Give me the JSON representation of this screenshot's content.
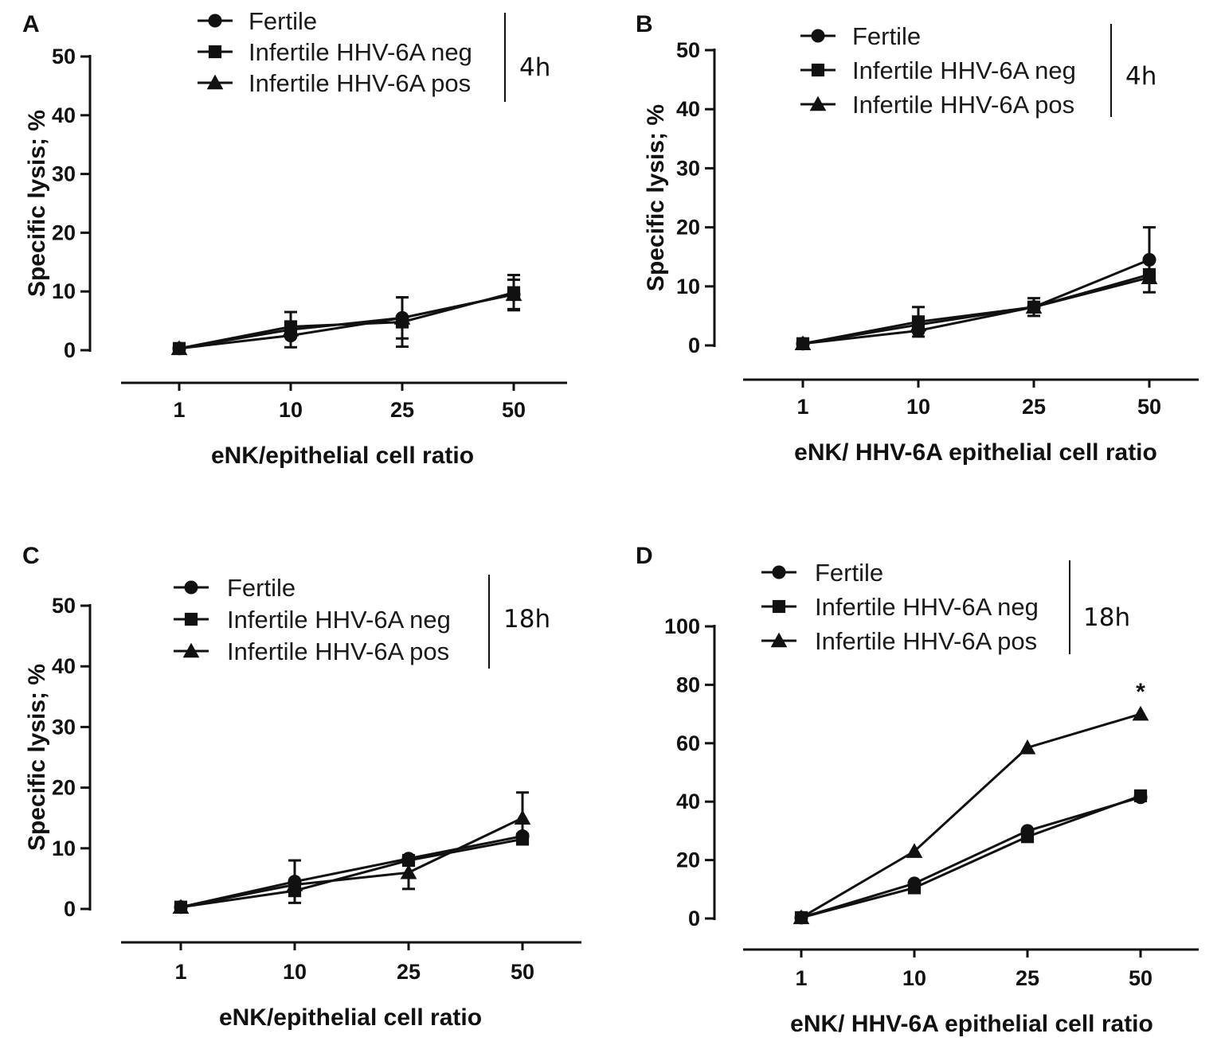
{
  "chart_data": [
    {
      "panel": "A",
      "type": "line",
      "categories": [
        "1",
        "10",
        "25",
        "50"
      ],
      "ylim": [
        0,
        50
      ],
      "yticks": [
        0,
        10,
        20,
        30,
        40,
        50
      ],
      "xlabel": "eNK/epithelial cell ratio",
      "ylabel": "Specific lysis; %",
      "time_label": "4h",
      "series": [
        {
          "name": "Fertile",
          "marker": "circle",
          "values": [
            0.3,
            2.5,
            5.5,
            9.5
          ],
          "err": [
            0,
            0,
            0,
            0
          ]
        },
        {
          "name": "Infertile HHV-6A neg",
          "marker": "square",
          "values": [
            0.3,
            4.0,
            4.8,
            9.8
          ],
          "err": [
            0,
            0,
            4.2,
            3.0
          ]
        },
        {
          "name": "Infertile HHV-6A pos",
          "marker": "triangle",
          "values": [
            0.3,
            3.5,
            5.5,
            9.5
          ],
          "err": [
            0,
            3.0,
            3.5,
            2.5
          ]
        }
      ]
    },
    {
      "panel": "B",
      "type": "line",
      "categories": [
        "1",
        "10",
        "25",
        "50"
      ],
      "ylim": [
        0,
        50
      ],
      "yticks": [
        0,
        10,
        20,
        30,
        40,
        50
      ],
      "xlabel": "eNK/ HHV-6A epithelial cell ratio",
      "ylabel": "Specific lysis; %",
      "time_label": "4h",
      "series": [
        {
          "name": "Fertile",
          "marker": "circle",
          "values": [
            0.3,
            2.5,
            6.5,
            14.5
          ],
          "err": [
            0,
            0,
            0,
            5.5
          ]
        },
        {
          "name": "Infertile HHV-6A neg",
          "marker": "square",
          "values": [
            0.3,
            4.0,
            6.5,
            12.0
          ],
          "err": [
            0,
            2.5,
            1.5,
            0
          ]
        },
        {
          "name": "Infertile HHV-6A pos",
          "marker": "triangle",
          "values": [
            0.3,
            3.5,
            6.5,
            11.5
          ],
          "err": [
            0,
            0,
            0,
            0
          ]
        }
      ]
    },
    {
      "panel": "C",
      "type": "line",
      "categories": [
        "1",
        "10",
        "25",
        "50"
      ],
      "ylim": [
        0,
        50
      ],
      "yticks": [
        0,
        10,
        20,
        30,
        40,
        50
      ],
      "xlabel": "eNK/epithelial cell ratio",
      "ylabel": "Specific lysis; %",
      "time_label": "18h",
      "series": [
        {
          "name": "Fertile",
          "marker": "circle",
          "values": [
            0.3,
            4.5,
            8.3,
            12.0
          ],
          "err": [
            0,
            3.5,
            0,
            0
          ]
        },
        {
          "name": "Infertile HHV-6A neg",
          "marker": "square",
          "values": [
            0.3,
            3.0,
            8.0,
            11.5
          ],
          "err": [
            0,
            0,
            0,
            0
          ]
        },
        {
          "name": "Infertile HHV-6A pos",
          "marker": "triangle",
          "values": [
            0.3,
            4.0,
            6.0,
            15.0
          ],
          "err": [
            0,
            0,
            2.7,
            4.2
          ]
        }
      ]
    },
    {
      "panel": "D",
      "type": "line",
      "categories": [
        "1",
        "10",
        "25",
        "50"
      ],
      "ylim": [
        0,
        100
      ],
      "yticks": [
        0,
        20,
        40,
        60,
        80,
        100
      ],
      "xlabel": "eNK/ HHV-6A epithelial cell ratio",
      "ylabel": "",
      "time_label": "18h",
      "annotation": "*",
      "series": [
        {
          "name": "Fertile",
          "marker": "circle",
          "values": [
            0.3,
            12.0,
            30.0,
            41.5
          ],
          "err": [
            0,
            0,
            0,
            0
          ]
        },
        {
          "name": "Infertile HHV-6A neg",
          "marker": "square",
          "values": [
            0.3,
            10.5,
            28.0,
            42.0
          ],
          "err": [
            0,
            0,
            0,
            0
          ]
        },
        {
          "name": "Infertile HHV-6A pos",
          "marker": "triangle",
          "values": [
            0.3,
            23.0,
            58.5,
            70.0
          ],
          "err": [
            0,
            0,
            0,
            0
          ]
        }
      ]
    }
  ]
}
